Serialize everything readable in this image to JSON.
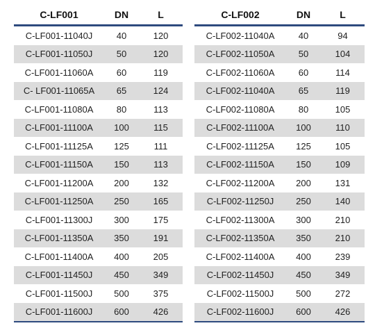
{
  "tables": [
    {
      "headers": [
        "C-LF001",
        "DN",
        "L"
      ],
      "rows": [
        [
          "C-LF001-11040J",
          "40",
          "120"
        ],
        [
          "C-LF001-11050J",
          "50",
          "120"
        ],
        [
          "C-LF001-11060A",
          "60",
          "119"
        ],
        [
          "C- LF001-11065A",
          "65",
          "124"
        ],
        [
          "C-LF001-11080A",
          "80",
          "113"
        ],
        [
          "C-LF001-11100A",
          "100",
          "115"
        ],
        [
          "C-LF001-11125A",
          "125",
          "111"
        ],
        [
          "C-LF001-11150A",
          "150",
          "113"
        ],
        [
          "C-LF001-11200A",
          "200",
          "132"
        ],
        [
          "C-LF001-11250A",
          "250",
          "165"
        ],
        [
          "C-LF001-11300J",
          "300",
          "175"
        ],
        [
          "C-LF001-11350A",
          "350",
          "191"
        ],
        [
          "C-LF001-11400A",
          "400",
          "205"
        ],
        [
          "C-LF001-11450J",
          "450",
          "349"
        ],
        [
          "C-LF001-11500J",
          "500",
          "375"
        ],
        [
          "C-LF001-11600J",
          "600",
          "426"
        ]
      ]
    },
    {
      "headers": [
        "C-LF002",
        "DN",
        "L"
      ],
      "rows": [
        [
          "C-LF002-11040A",
          "40",
          "94"
        ],
        [
          "C-LF002-11050A",
          "50",
          "104"
        ],
        [
          "C-LF002-11060A",
          "60",
          "114"
        ],
        [
          "C-LF002-11040A",
          "65",
          "119"
        ],
        [
          "C-LF002-11080A",
          "80",
          "105"
        ],
        [
          "C-LF002-11100A",
          "100",
          "110"
        ],
        [
          "C-LF002-11125A",
          "125",
          "105"
        ],
        [
          "C-LF002-11150A",
          "150",
          "109"
        ],
        [
          "C-LF002-11200A",
          "200",
          "131"
        ],
        [
          "C-LF002-11250J",
          "250",
          "140"
        ],
        [
          "C-LF002-11300A",
          "300",
          "210"
        ],
        [
          "C-LF002-11350A",
          "350",
          "210"
        ],
        [
          "C-LF002-11400A",
          "400",
          "239"
        ],
        [
          "C-LF002-11450J",
          "450",
          "349"
        ],
        [
          "C-LF002-11500J",
          "500",
          "272"
        ],
        [
          "C-LF002-11600J",
          "600",
          "426"
        ]
      ]
    }
  ],
  "colors": {
    "header_rule": "#2e4a7e",
    "stripe": "#dcdcdc"
  }
}
